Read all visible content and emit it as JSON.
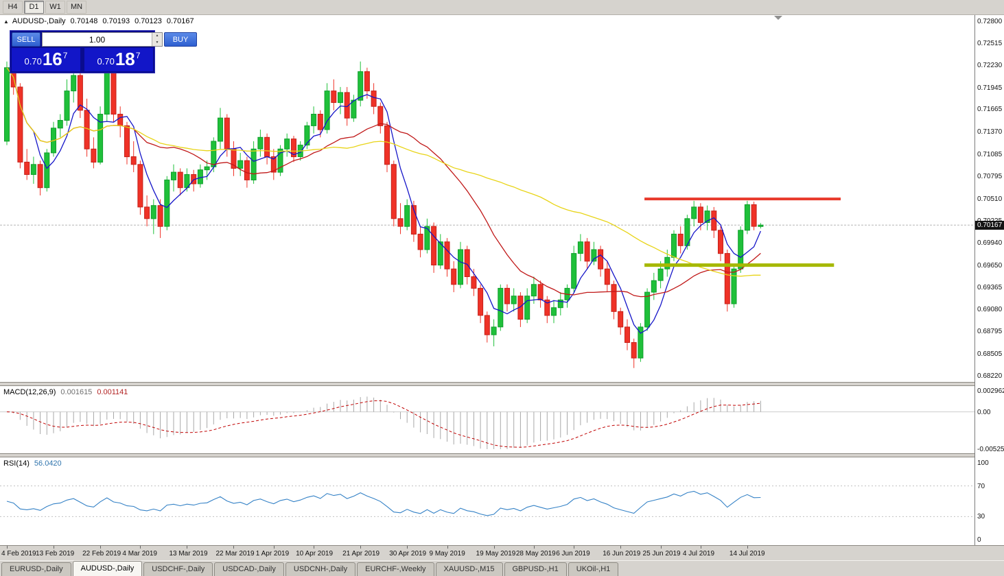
{
  "toolbar": {
    "timeframes": [
      {
        "label": "H4",
        "active": false
      },
      {
        "label": "D1",
        "active": true
      },
      {
        "label": "W1",
        "active": false
      },
      {
        "label": "MN",
        "active": false
      }
    ]
  },
  "icons": {
    "expand_triangle": "▲",
    "spinner_up": "▲",
    "spinner_down": "▼"
  },
  "chart": {
    "title": "AUDUSD-,Daily",
    "ohlc": {
      "open": "0.70148",
      "high": "0.70193",
      "low": "0.70123",
      "close": "0.70167"
    },
    "current_price": "0.70167",
    "one_click": {
      "sell_label": "SELL",
      "buy_label": "BUY",
      "volume": "1.00",
      "bid_head": "0.70",
      "bid_big": "16",
      "bid_sup": "7",
      "ask_head": "0.70",
      "ask_big": "18",
      "ask_sup": "7"
    }
  },
  "chart_data": {
    "type": "candlestick",
    "symbol": "AUDUSD-",
    "period": "Daily",
    "y_axis": {
      "max": 0.728,
      "min": 0.6822,
      "labels": [
        "0.72800",
        "0.72515",
        "0.72230",
        "0.71945",
        "0.71665",
        "0.71370",
        "0.71085",
        "0.70795",
        "0.70510",
        "0.70225",
        "0.69940",
        "0.69650",
        "0.69365",
        "0.69080",
        "0.68795",
        "0.68505",
        "0.68220"
      ]
    },
    "x_ticks": [
      {
        "label": "4 Feb 2019",
        "i": 0
      },
      {
        "label": "13 Feb 2019",
        "i": 7
      },
      {
        "label": "22 Feb 2019",
        "i": 14
      },
      {
        "label": "4 Mar 2019",
        "i": 20
      },
      {
        "label": "13 Mar 2019",
        "i": 27
      },
      {
        "label": "22 Mar 2019",
        "i": 34
      },
      {
        "label": "1 Apr 2019",
        "i": 40
      },
      {
        "label": "10 Apr 2019",
        "i": 46
      },
      {
        "label": "21 Apr 2019",
        "i": 53
      },
      {
        "label": "30 Apr 2019",
        "i": 60
      },
      {
        "label": "9 May 2019",
        "i": 66
      },
      {
        "label": "19 May 2019",
        "i": 73
      },
      {
        "label": "28 May 2019",
        "i": 79
      },
      {
        "label": "6 Jun 2019",
        "i": 85
      },
      {
        "label": "16 Jun 2019",
        "i": 92
      },
      {
        "label": "25 Jun 2019",
        "i": 98
      },
      {
        "label": "4 Jul 2019",
        "i": 104
      },
      {
        "label": "14 Jul 2019",
        "i": 111
      }
    ],
    "candles": [
      [
        0.7125,
        0.7228,
        0.712,
        0.722
      ],
      [
        0.722,
        0.7232,
        0.7185,
        0.7195
      ],
      [
        0.7195,
        0.72,
        0.709,
        0.7098
      ],
      [
        0.7098,
        0.7115,
        0.7075,
        0.7082
      ],
      [
        0.7082,
        0.7105,
        0.707,
        0.7095
      ],
      [
        0.7095,
        0.71,
        0.7055,
        0.7065
      ],
      [
        0.7065,
        0.7115,
        0.706,
        0.711
      ],
      [
        0.711,
        0.715,
        0.7105,
        0.7142
      ],
      [
        0.7142,
        0.716,
        0.713,
        0.7152
      ],
      [
        0.7152,
        0.7205,
        0.7145,
        0.719
      ],
      [
        0.719,
        0.722,
        0.7175,
        0.721
      ],
      [
        0.721,
        0.7215,
        0.7155,
        0.7165
      ],
      [
        0.7165,
        0.718,
        0.7105,
        0.7115
      ],
      [
        0.7115,
        0.713,
        0.709,
        0.7098
      ],
      [
        0.7098,
        0.717,
        0.7095,
        0.716
      ],
      [
        0.716,
        0.7225,
        0.715,
        0.7215
      ],
      [
        0.7215,
        0.722,
        0.715,
        0.716
      ],
      [
        0.716,
        0.717,
        0.713,
        0.7145
      ],
      [
        0.7145,
        0.715,
        0.7095,
        0.7105
      ],
      [
        0.7105,
        0.7125,
        0.7085,
        0.7095
      ],
      [
        0.7095,
        0.71,
        0.703,
        0.704
      ],
      [
        0.704,
        0.7055,
        0.7015,
        0.7025
      ],
      [
        0.7025,
        0.705,
        0.7005,
        0.7042
      ],
      [
        0.7042,
        0.705,
        0.7,
        0.7015
      ],
      [
        0.7015,
        0.708,
        0.701,
        0.7075
      ],
      [
        0.7075,
        0.7095,
        0.706,
        0.7085
      ],
      [
        0.7085,
        0.709,
        0.7055,
        0.7065
      ],
      [
        0.7065,
        0.709,
        0.706,
        0.7082
      ],
      [
        0.7082,
        0.7088,
        0.706,
        0.707
      ],
      [
        0.707,
        0.7095,
        0.7065,
        0.7088
      ],
      [
        0.7088,
        0.71,
        0.7075,
        0.7092
      ],
      [
        0.7092,
        0.713,
        0.7085,
        0.7125
      ],
      [
        0.7125,
        0.7168,
        0.7115,
        0.7155
      ],
      [
        0.7155,
        0.716,
        0.7105,
        0.7115
      ],
      [
        0.7115,
        0.7125,
        0.708,
        0.709
      ],
      [
        0.709,
        0.711,
        0.708,
        0.71
      ],
      [
        0.71,
        0.7105,
        0.7065,
        0.7075
      ],
      [
        0.7075,
        0.7125,
        0.707,
        0.7115
      ],
      [
        0.7115,
        0.714,
        0.7105,
        0.713
      ],
      [
        0.713,
        0.7135,
        0.7095,
        0.7105
      ],
      [
        0.7105,
        0.7115,
        0.7075,
        0.7085
      ],
      [
        0.7085,
        0.712,
        0.708,
        0.7115
      ],
      [
        0.7115,
        0.7135,
        0.7105,
        0.7128
      ],
      [
        0.7128,
        0.7132,
        0.7098,
        0.7105
      ],
      [
        0.7105,
        0.7125,
        0.71,
        0.712
      ],
      [
        0.712,
        0.715,
        0.7115,
        0.7145
      ],
      [
        0.7145,
        0.717,
        0.7135,
        0.716
      ],
      [
        0.716,
        0.7165,
        0.713,
        0.714
      ],
      [
        0.714,
        0.72,
        0.7135,
        0.719
      ],
      [
        0.719,
        0.7205,
        0.7165,
        0.7175
      ],
      [
        0.7175,
        0.7195,
        0.716,
        0.7188
      ],
      [
        0.7188,
        0.7195,
        0.7145,
        0.7155
      ],
      [
        0.7155,
        0.7185,
        0.715,
        0.7178
      ],
      [
        0.7178,
        0.7228,
        0.717,
        0.7215
      ],
      [
        0.7215,
        0.722,
        0.718,
        0.719
      ],
      [
        0.719,
        0.72,
        0.716,
        0.717
      ],
      [
        0.717,
        0.7175,
        0.7135,
        0.7145
      ],
      [
        0.7145,
        0.715,
        0.7085,
        0.7095
      ],
      [
        0.7095,
        0.71,
        0.7015,
        0.7025
      ],
      [
        0.7025,
        0.7045,
        0.7005,
        0.7015
      ],
      [
        0.7015,
        0.705,
        0.701,
        0.7042
      ],
      [
        0.7042,
        0.7048,
        0.6995,
        0.7005
      ],
      [
        0.7005,
        0.7015,
        0.6975,
        0.6985
      ],
      [
        0.6985,
        0.7025,
        0.698,
        0.7015
      ],
      [
        0.7015,
        0.702,
        0.6955,
        0.6965
      ],
      [
        0.6965,
        0.7005,
        0.696,
        0.6995
      ],
      [
        0.6995,
        0.7,
        0.695,
        0.696
      ],
      [
        0.696,
        0.697,
        0.693,
        0.694
      ],
      [
        0.694,
        0.6995,
        0.6935,
        0.6985
      ],
      [
        0.6985,
        0.699,
        0.694,
        0.695
      ],
      [
        0.695,
        0.696,
        0.6925,
        0.6935
      ],
      [
        0.6935,
        0.694,
        0.689,
        0.69
      ],
      [
        0.69,
        0.6905,
        0.6865,
        0.6875
      ],
      [
        0.6875,
        0.6895,
        0.686,
        0.6885
      ],
      [
        0.6885,
        0.694,
        0.688,
        0.6935
      ],
      [
        0.6935,
        0.694,
        0.6905,
        0.6915
      ],
      [
        0.6915,
        0.6935,
        0.6905,
        0.6925
      ],
      [
        0.6925,
        0.693,
        0.6885,
        0.6895
      ],
      [
        0.6895,
        0.6935,
        0.689,
        0.6925
      ],
      [
        0.6925,
        0.695,
        0.6915,
        0.694
      ],
      [
        0.694,
        0.6945,
        0.691,
        0.692
      ],
      [
        0.692,
        0.6925,
        0.689,
        0.69
      ],
      [
        0.69,
        0.692,
        0.689,
        0.691
      ],
      [
        0.691,
        0.693,
        0.69,
        0.692
      ],
      [
        0.692,
        0.694,
        0.691,
        0.6935
      ],
      [
        0.6935,
        0.699,
        0.693,
        0.698
      ],
      [
        0.698,
        0.7005,
        0.697,
        0.6995
      ],
      [
        0.6995,
        0.7,
        0.696,
        0.697
      ],
      [
        0.697,
        0.6995,
        0.6965,
        0.6985
      ],
      [
        0.6985,
        0.699,
        0.695,
        0.696
      ],
      [
        0.696,
        0.697,
        0.693,
        0.694
      ],
      [
        0.694,
        0.6945,
        0.6895,
        0.6905
      ],
      [
        0.6905,
        0.691,
        0.6875,
        0.6885
      ],
      [
        0.6885,
        0.6895,
        0.6855,
        0.6865
      ],
      [
        0.6865,
        0.687,
        0.6832,
        0.6845
      ],
      [
        0.6845,
        0.689,
        0.684,
        0.6885
      ],
      [
        0.6885,
        0.6935,
        0.688,
        0.693
      ],
      [
        0.693,
        0.6955,
        0.692,
        0.6945
      ],
      [
        0.6945,
        0.697,
        0.6935,
        0.696
      ],
      [
        0.696,
        0.6985,
        0.695,
        0.6975
      ],
      [
        0.6975,
        0.701,
        0.697,
        0.7005
      ],
      [
        0.7005,
        0.7015,
        0.698,
        0.699
      ],
      [
        0.699,
        0.703,
        0.6985,
        0.7025
      ],
      [
        0.7025,
        0.7048,
        0.7015,
        0.704
      ],
      [
        0.704,
        0.7045,
        0.701,
        0.702
      ],
      [
        0.702,
        0.7042,
        0.701,
        0.7035
      ],
      [
        0.7035,
        0.704,
        0.7,
        0.701
      ],
      [
        0.701,
        0.7015,
        0.697,
        0.698
      ],
      [
        0.698,
        0.6985,
        0.6905,
        0.6915
      ],
      [
        0.6915,
        0.6965,
        0.691,
        0.696
      ],
      [
        0.696,
        0.7015,
        0.6955,
        0.701
      ],
      [
        0.701,
        0.7048,
        0.7005,
        0.7043
      ],
      [
        0.7043,
        0.7047,
        0.701,
        0.7015
      ],
      [
        0.70148,
        0.70193,
        0.70123,
        0.70167
      ]
    ],
    "moving_averages": [
      {
        "period": 5,
        "color": "#1515c8"
      },
      {
        "period": 20,
        "color": "#c01818"
      },
      {
        "period": 50,
        "color": "#e8d417"
      }
    ],
    "hlines": [
      {
        "name": "resistance-line",
        "price": 0.70505,
        "color": "#e8392b",
        "thickness": 4,
        "start_index": 96,
        "extend_bars": 12
      },
      {
        "name": "support-line",
        "price": 0.6965,
        "color": "#a6b800",
        "thickness": 5,
        "start_index": 96,
        "extend_bars": 11
      }
    ],
    "colors": {
      "bull": "#1fc03a",
      "bull_edge": "#0f9e2b",
      "bear": "#ef3227",
      "bear_edge": "#c4211a",
      "macd_hist": "#a8a8a8",
      "macd_signal": "#c00000",
      "rsi": "#3381c6"
    },
    "macd": {
      "label": "MACD(12,26,9)",
      "value_main": "0.001615",
      "value_signal": "0.001141",
      "fast_period": 12,
      "slow_period": 26,
      "signal_period": 9,
      "range": {
        "max": 0.002962,
        "min": -0.005255
      },
      "axis_values": [
        0.002962,
        0,
        -0.005255
      ],
      "axis_labels": [
        "0.002962",
        "0.00",
        "-0.005255"
      ]
    },
    "rsi": {
      "label": "RSI(14)",
      "value": "56.0420",
      "period": 14,
      "levels": [
        70,
        30
      ],
      "axis_values": [
        100,
        70,
        30,
        0
      ],
      "axis_labels": [
        "100",
        "70",
        "30",
        "0"
      ]
    }
  },
  "tabs": [
    {
      "label": "EURUSD-,Daily",
      "active": false
    },
    {
      "label": "AUDUSD-,Daily",
      "active": true
    },
    {
      "label": "USDCHF-,Daily",
      "active": false
    },
    {
      "label": "USDCAD-,Daily",
      "active": false
    },
    {
      "label": "USDCNH-,Daily",
      "active": false
    },
    {
      "label": "EURCHF-,Weekly",
      "active": false
    },
    {
      "label": "XAUUSD-,M15",
      "active": false
    },
    {
      "label": "GBPUSD-,H1",
      "active": false
    },
    {
      "label": "UKOil-,H1",
      "active": false
    }
  ]
}
